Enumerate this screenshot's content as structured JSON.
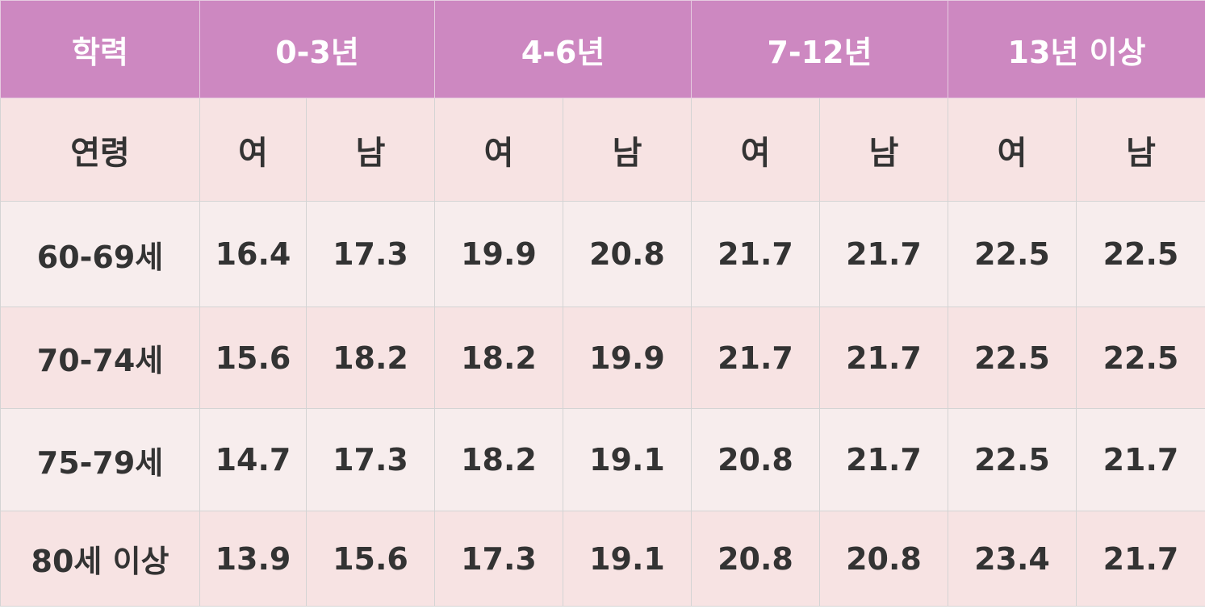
{
  "table": {
    "header": [
      "학력",
      "0-3년",
      "4-6년",
      "7-12년",
      "13년 이상"
    ],
    "subheader": {
      "row_label": "연령",
      "cols": [
        "여",
        "남",
        "여",
        "남",
        "여",
        "남",
        "여",
        "남"
      ]
    },
    "rows": [
      {
        "age": "60-69세",
        "values": [
          "16.4",
          "17.3",
          "19.9",
          "20.8",
          "21.7",
          "21.7",
          "22.5",
          "22.5"
        ]
      },
      {
        "age": "70-74세",
        "values": [
          "15.6",
          "18.2",
          "18.2",
          "19.9",
          "21.7",
          "21.7",
          "22.5",
          "22.5"
        ]
      },
      {
        "age": "75-79세",
        "values": [
          "14.7",
          "17.3",
          "18.2",
          "19.1",
          "20.8",
          "21.7",
          "22.5",
          "21.7"
        ]
      },
      {
        "age": "80세 이상",
        "values": [
          "13.9",
          "15.6",
          "17.3",
          "19.1",
          "20.8",
          "20.8",
          "23.4",
          "21.7"
        ]
      }
    ]
  }
}
